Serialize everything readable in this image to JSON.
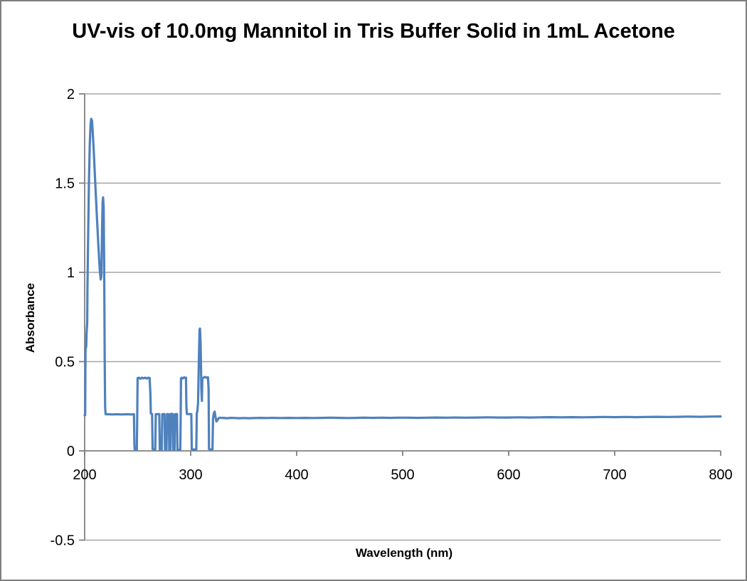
{
  "colors": {
    "series_line": "#4F81BD",
    "gridline": "#A6A6A6",
    "axis_line": "#808080",
    "text": "#000000",
    "frame_border": "#7F7F7F",
    "background": "#FFFFFF"
  },
  "chart_data": {
    "type": "line",
    "title": "UV-vis of 10.0mg Mannitol in Tris Buffer Solid in 1mL Acetone",
    "xlabel": "Wavelength (nm)",
    "ylabel": "Absorbance",
    "xlim": [
      200,
      800
    ],
    "ylim": [
      -0.5,
      2
    ],
    "x_ticks": [
      200,
      300,
      400,
      500,
      600,
      700,
      800
    ],
    "x_tick_labels": [
      "200",
      "300",
      "400",
      "500",
      "600",
      "700",
      "800"
    ],
    "y_ticks": [
      -0.5,
      0,
      0.5,
      1,
      1.5,
      2
    ],
    "y_tick_labels": [
      "-0.5",
      "0",
      "0.5",
      "1",
      "1.5",
      "2"
    ],
    "grid": true,
    "legend": false,
    "series": [
      {
        "name": "absorbance-spectrum",
        "color": "#4F81BD",
        "width": 3.2,
        "points": [
          [
            200,
            0.2
          ],
          [
            200.5,
            0.2
          ],
          [
            200.8,
            0.57
          ],
          [
            201.5,
            0.585
          ],
          [
            201.8,
            0.66
          ],
          [
            202.4,
            0.72
          ],
          [
            202.6,
            0.9
          ],
          [
            203.2,
            1.18
          ],
          [
            204,
            1.5
          ],
          [
            204.8,
            1.72
          ],
          [
            205.6,
            1.83
          ],
          [
            206.2,
            1.86
          ],
          [
            206.9,
            1.85
          ],
          [
            207.6,
            1.79
          ],
          [
            208.6,
            1.68
          ],
          [
            210,
            1.5
          ],
          [
            211.5,
            1.32
          ],
          [
            213,
            1.14
          ],
          [
            214.3,
            1.01
          ],
          [
            215.2,
            0.96
          ],
          [
            215.8,
            0.98
          ],
          [
            216.4,
            1.22
          ],
          [
            216.9,
            1.39
          ],
          [
            217.4,
            1.42
          ],
          [
            217.9,
            1.36
          ],
          [
            218.4,
            1.05
          ],
          [
            218.9,
            0.5
          ],
          [
            219.3,
            0.24
          ],
          [
            219.8,
            0.205
          ],
          [
            222,
            0.205
          ],
          [
            226,
            0.204
          ],
          [
            230,
            0.205
          ],
          [
            235,
            0.204
          ],
          [
            240,
            0.205
          ],
          [
            244,
            0.204
          ],
          [
            246.5,
            0.205
          ],
          [
            246.9,
            0.04
          ],
          [
            247.2,
            0.008
          ],
          [
            249.2,
            0.006
          ],
          [
            249.6,
            0.2
          ],
          [
            249.9,
            0.408
          ],
          [
            251,
            0.41
          ],
          [
            252.5,
            0.404
          ],
          [
            254,
            0.41
          ],
          [
            255.5,
            0.406
          ],
          [
            257,
            0.41
          ],
          [
            258.5,
            0.405
          ],
          [
            260,
            0.41
          ],
          [
            261.3,
            0.408
          ],
          [
            262,
            0.32
          ],
          [
            262.4,
            0.21
          ],
          [
            263.6,
            0.206
          ],
          [
            264.1,
            0.01
          ],
          [
            266.6,
            0.008
          ],
          [
            267.1,
            0.205
          ],
          [
            270.4,
            0.206
          ],
          [
            270.9,
            0.006
          ],
          [
            272.7,
            0.007
          ],
          [
            273.2,
            0.205
          ],
          [
            275.4,
            0.206
          ],
          [
            275.8,
            0.008
          ],
          [
            277.2,
            0.008
          ],
          [
            277.7,
            0.206
          ],
          [
            279.4,
            0.205
          ],
          [
            279.8,
            0.006
          ],
          [
            281,
            0.007
          ],
          [
            281.5,
            0.207
          ],
          [
            283.2,
            0.206
          ],
          [
            283.6,
            0.008
          ],
          [
            284.8,
            0.008
          ],
          [
            285.3,
            0.205
          ],
          [
            287.1,
            0.206
          ],
          [
            287.5,
            0.006
          ],
          [
            290.2,
            0.006
          ],
          [
            290.6,
            0.2
          ],
          [
            290.9,
            0.405
          ],
          [
            291.5,
            0.41
          ],
          [
            292.7,
            0.406
          ],
          [
            293.9,
            0.412
          ],
          [
            295,
            0.408
          ],
          [
            295.6,
            0.41
          ],
          [
            296,
            0.25
          ],
          [
            296.4,
            0.207
          ],
          [
            298,
            0.206
          ],
          [
            300.6,
            0.206
          ],
          [
            301.1,
            0.008
          ],
          [
            305.3,
            0.007
          ],
          [
            305.8,
            0.21
          ],
          [
            306.4,
            0.225
          ],
          [
            307,
            0.27
          ],
          [
            307.7,
            0.5
          ],
          [
            308.4,
            0.68
          ],
          [
            308.8,
            0.685
          ],
          [
            309.4,
            0.6
          ],
          [
            310.1,
            0.35
          ],
          [
            310.6,
            0.28
          ],
          [
            311,
            0.405
          ],
          [
            312,
            0.41
          ],
          [
            313.5,
            0.414
          ],
          [
            315,
            0.41
          ],
          [
            316.3,
            0.412
          ],
          [
            316.9,
            0.35
          ],
          [
            317.3,
            0.01
          ],
          [
            318.5,
            0.008
          ],
          [
            320.6,
            0.008
          ],
          [
            321.1,
            0.18
          ],
          [
            321.8,
            0.21
          ],
          [
            322.6,
            0.22
          ],
          [
            323.4,
            0.19
          ],
          [
            324.3,
            0.165
          ],
          [
            325.3,
            0.172
          ],
          [
            326.4,
            0.183
          ],
          [
            327.6,
            0.186
          ],
          [
            329,
            0.184
          ],
          [
            331,
            0.185
          ],
          [
            334,
            0.183
          ],
          [
            338,
            0.185
          ],
          [
            342,
            0.184
          ],
          [
            346,
            0.183
          ],
          [
            350,
            0.184
          ],
          [
            355,
            0.183
          ],
          [
            360,
            0.184
          ],
          [
            366,
            0.185
          ],
          [
            372,
            0.184
          ],
          [
            378,
            0.185
          ],
          [
            385,
            0.184
          ],
          [
            392,
            0.185
          ],
          [
            400,
            0.184
          ],
          [
            408,
            0.185
          ],
          [
            416,
            0.184
          ],
          [
            424,
            0.185
          ],
          [
            432,
            0.186
          ],
          [
            440,
            0.185
          ],
          [
            448,
            0.184
          ],
          [
            456,
            0.185
          ],
          [
            464,
            0.186
          ],
          [
            472,
            0.185
          ],
          [
            480,
            0.186
          ],
          [
            488,
            0.185
          ],
          [
            496,
            0.186
          ],
          [
            505,
            0.186
          ],
          [
            514,
            0.185
          ],
          [
            523,
            0.186
          ],
          [
            532,
            0.187
          ],
          [
            541,
            0.186
          ],
          [
            550,
            0.187
          ],
          [
            560,
            0.186
          ],
          [
            570,
            0.187
          ],
          [
            580,
            0.188
          ],
          [
            590,
            0.187
          ],
          [
            600,
            0.187
          ],
          [
            610,
            0.188
          ],
          [
            620,
            0.187
          ],
          [
            630,
            0.188
          ],
          [
            640,
            0.189
          ],
          [
            650,
            0.188
          ],
          [
            660,
            0.189
          ],
          [
            670,
            0.188
          ],
          [
            680,
            0.189
          ],
          [
            690,
            0.19
          ],
          [
            700,
            0.189
          ],
          [
            710,
            0.19
          ],
          [
            720,
            0.189
          ],
          [
            730,
            0.19
          ],
          [
            740,
            0.191
          ],
          [
            750,
            0.19
          ],
          [
            760,
            0.191
          ],
          [
            770,
            0.192
          ],
          [
            780,
            0.191
          ],
          [
            790,
            0.192
          ],
          [
            800,
            0.193
          ]
        ]
      }
    ]
  }
}
